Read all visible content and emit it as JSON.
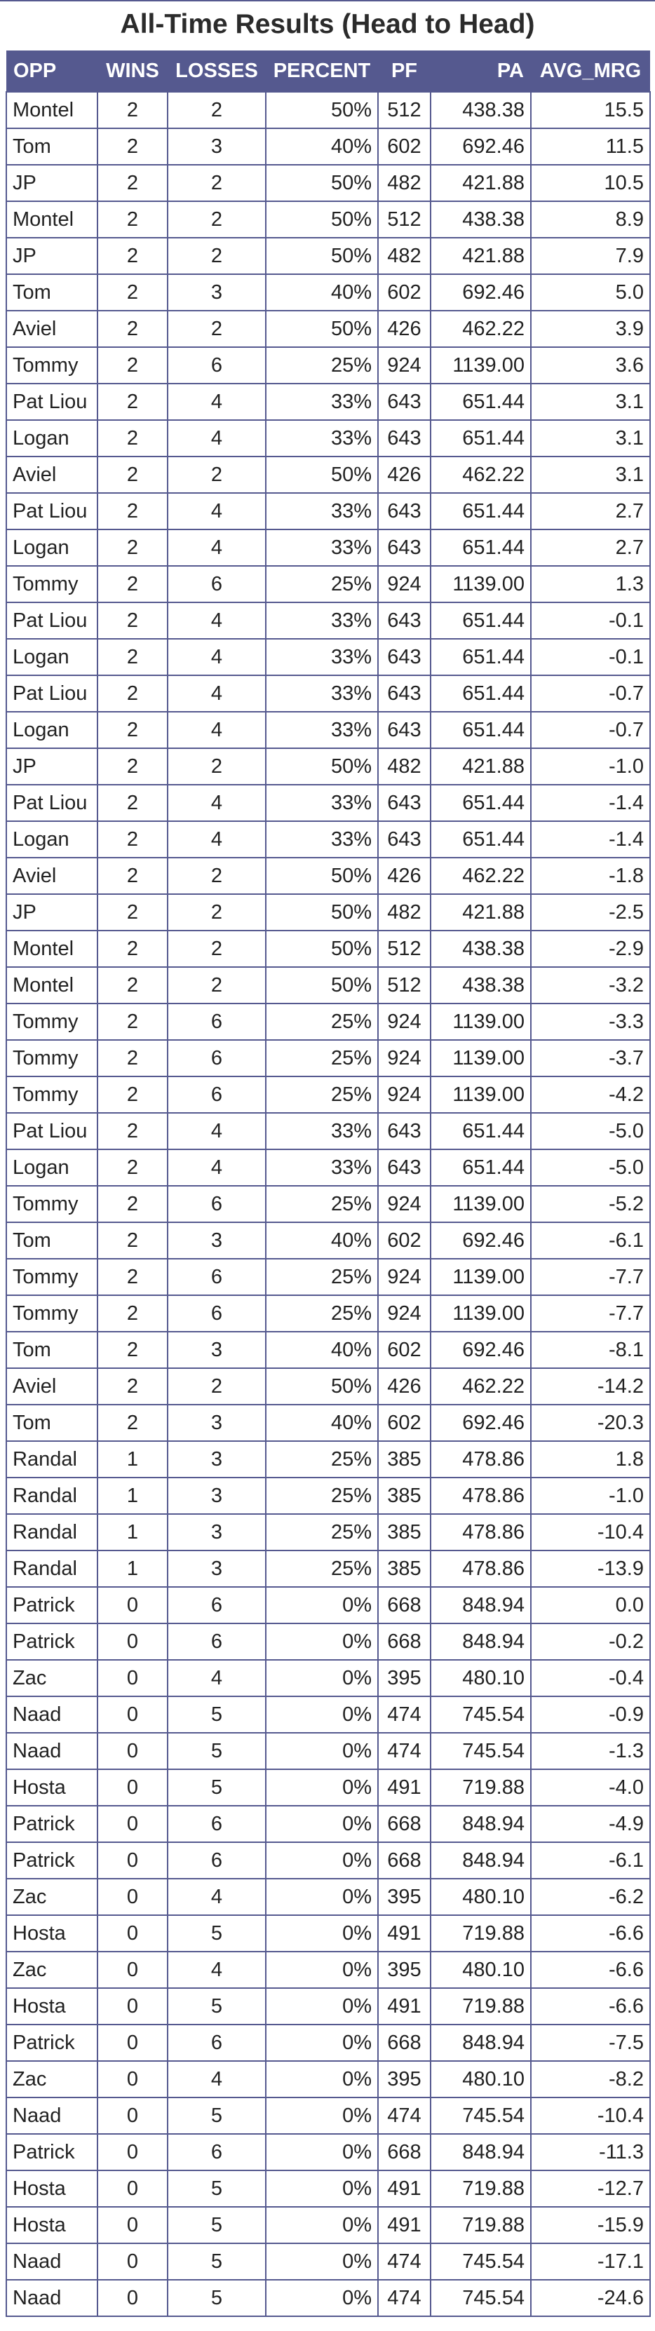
{
  "title": "All-Time Results (Head to Head)",
  "accent_color": "#55598f",
  "columns": [
    "OPP",
    "WINS",
    "LOSSES",
    "PERCENT",
    "PF",
    "PA",
    "AVG_MRG"
  ],
  "rows": [
    [
      "Montel",
      "2",
      "2",
      "50%",
      "512",
      "438.38",
      "15.5"
    ],
    [
      "Tom",
      "2",
      "3",
      "40%",
      "602",
      "692.46",
      "11.5"
    ],
    [
      "JP",
      "2",
      "2",
      "50%",
      "482",
      "421.88",
      "10.5"
    ],
    [
      "Montel",
      "2",
      "2",
      "50%",
      "512",
      "438.38",
      "8.9"
    ],
    [
      "JP",
      "2",
      "2",
      "50%",
      "482",
      "421.88",
      "7.9"
    ],
    [
      "Tom",
      "2",
      "3",
      "40%",
      "602",
      "692.46",
      "5.0"
    ],
    [
      "Aviel",
      "2",
      "2",
      "50%",
      "426",
      "462.22",
      "3.9"
    ],
    [
      "Tommy",
      "2",
      "6",
      "25%",
      "924",
      "1139.00",
      "3.6"
    ],
    [
      "Pat Liou",
      "2",
      "4",
      "33%",
      "643",
      "651.44",
      "3.1"
    ],
    [
      "Logan",
      "2",
      "4",
      "33%",
      "643",
      "651.44",
      "3.1"
    ],
    [
      "Aviel",
      "2",
      "2",
      "50%",
      "426",
      "462.22",
      "3.1"
    ],
    [
      "Pat Liou",
      "2",
      "4",
      "33%",
      "643",
      "651.44",
      "2.7"
    ],
    [
      "Logan",
      "2",
      "4",
      "33%",
      "643",
      "651.44",
      "2.7"
    ],
    [
      "Tommy",
      "2",
      "6",
      "25%",
      "924",
      "1139.00",
      "1.3"
    ],
    [
      "Pat Liou",
      "2",
      "4",
      "33%",
      "643",
      "651.44",
      "-0.1"
    ],
    [
      "Logan",
      "2",
      "4",
      "33%",
      "643",
      "651.44",
      "-0.1"
    ],
    [
      "Pat Liou",
      "2",
      "4",
      "33%",
      "643",
      "651.44",
      "-0.7"
    ],
    [
      "Logan",
      "2",
      "4",
      "33%",
      "643",
      "651.44",
      "-0.7"
    ],
    [
      "JP",
      "2",
      "2",
      "50%",
      "482",
      "421.88",
      "-1.0"
    ],
    [
      "Pat Liou",
      "2",
      "4",
      "33%",
      "643",
      "651.44",
      "-1.4"
    ],
    [
      "Logan",
      "2",
      "4",
      "33%",
      "643",
      "651.44",
      "-1.4"
    ],
    [
      "Aviel",
      "2",
      "2",
      "50%",
      "426",
      "462.22",
      "-1.8"
    ],
    [
      "JP",
      "2",
      "2",
      "50%",
      "482",
      "421.88",
      "-2.5"
    ],
    [
      "Montel",
      "2",
      "2",
      "50%",
      "512",
      "438.38",
      "-2.9"
    ],
    [
      "Montel",
      "2",
      "2",
      "50%",
      "512",
      "438.38",
      "-3.2"
    ],
    [
      "Tommy",
      "2",
      "6",
      "25%",
      "924",
      "1139.00",
      "-3.3"
    ],
    [
      "Tommy",
      "2",
      "6",
      "25%",
      "924",
      "1139.00",
      "-3.7"
    ],
    [
      "Tommy",
      "2",
      "6",
      "25%",
      "924",
      "1139.00",
      "-4.2"
    ],
    [
      "Pat Liou",
      "2",
      "4",
      "33%",
      "643",
      "651.44",
      "-5.0"
    ],
    [
      "Logan",
      "2",
      "4",
      "33%",
      "643",
      "651.44",
      "-5.0"
    ],
    [
      "Tommy",
      "2",
      "6",
      "25%",
      "924",
      "1139.00",
      "-5.2"
    ],
    [
      "Tom",
      "2",
      "3",
      "40%",
      "602",
      "692.46",
      "-6.1"
    ],
    [
      "Tommy",
      "2",
      "6",
      "25%",
      "924",
      "1139.00",
      "-7.7"
    ],
    [
      "Tommy",
      "2",
      "6",
      "25%",
      "924",
      "1139.00",
      "-7.7"
    ],
    [
      "Tom",
      "2",
      "3",
      "40%",
      "602",
      "692.46",
      "-8.1"
    ],
    [
      "Aviel",
      "2",
      "2",
      "50%",
      "426",
      "462.22",
      "-14.2"
    ],
    [
      "Tom",
      "2",
      "3",
      "40%",
      "602",
      "692.46",
      "-20.3"
    ],
    [
      "Randal",
      "1",
      "3",
      "25%",
      "385",
      "478.86",
      "1.8"
    ],
    [
      "Randal",
      "1",
      "3",
      "25%",
      "385",
      "478.86",
      "-1.0"
    ],
    [
      "Randal",
      "1",
      "3",
      "25%",
      "385",
      "478.86",
      "-10.4"
    ],
    [
      "Randal",
      "1",
      "3",
      "25%",
      "385",
      "478.86",
      "-13.9"
    ],
    [
      "Patrick",
      "0",
      "6",
      "0%",
      "668",
      "848.94",
      "0.0"
    ],
    [
      "Patrick",
      "0",
      "6",
      "0%",
      "668",
      "848.94",
      "-0.2"
    ],
    [
      "Zac",
      "0",
      "4",
      "0%",
      "395",
      "480.10",
      "-0.4"
    ],
    [
      "Naad",
      "0",
      "5",
      "0%",
      "474",
      "745.54",
      "-0.9"
    ],
    [
      "Naad",
      "0",
      "5",
      "0%",
      "474",
      "745.54",
      "-1.3"
    ],
    [
      "Hosta",
      "0",
      "5",
      "0%",
      "491",
      "719.88",
      "-4.0"
    ],
    [
      "Patrick",
      "0",
      "6",
      "0%",
      "668",
      "848.94",
      "-4.9"
    ],
    [
      "Patrick",
      "0",
      "6",
      "0%",
      "668",
      "848.94",
      "-6.1"
    ],
    [
      "Zac",
      "0",
      "4",
      "0%",
      "395",
      "480.10",
      "-6.2"
    ],
    [
      "Hosta",
      "0",
      "5",
      "0%",
      "491",
      "719.88",
      "-6.6"
    ],
    [
      "Zac",
      "0",
      "4",
      "0%",
      "395",
      "480.10",
      "-6.6"
    ],
    [
      "Hosta",
      "0",
      "5",
      "0%",
      "491",
      "719.88",
      "-6.6"
    ],
    [
      "Patrick",
      "0",
      "6",
      "0%",
      "668",
      "848.94",
      "-7.5"
    ],
    [
      "Zac",
      "0",
      "4",
      "0%",
      "395",
      "480.10",
      "-8.2"
    ],
    [
      "Naad",
      "0",
      "5",
      "0%",
      "474",
      "745.54",
      "-10.4"
    ],
    [
      "Patrick",
      "0",
      "6",
      "0%",
      "668",
      "848.94",
      "-11.3"
    ],
    [
      "Hosta",
      "0",
      "5",
      "0%",
      "491",
      "719.88",
      "-12.7"
    ],
    [
      "Hosta",
      "0",
      "5",
      "0%",
      "491",
      "719.88",
      "-15.9"
    ],
    [
      "Naad",
      "0",
      "5",
      "0%",
      "474",
      "745.54",
      "-17.1"
    ],
    [
      "Naad",
      "0",
      "5",
      "0%",
      "474",
      "745.54",
      "-24.6"
    ]
  ],
  "chart_data": {
    "type": "table",
    "title": "All-Time Results (Head to Head)",
    "columns": [
      "OPP",
      "WINS",
      "LOSSES",
      "PERCENT",
      "PF",
      "PA",
      "AVG_MRG"
    ]
  }
}
